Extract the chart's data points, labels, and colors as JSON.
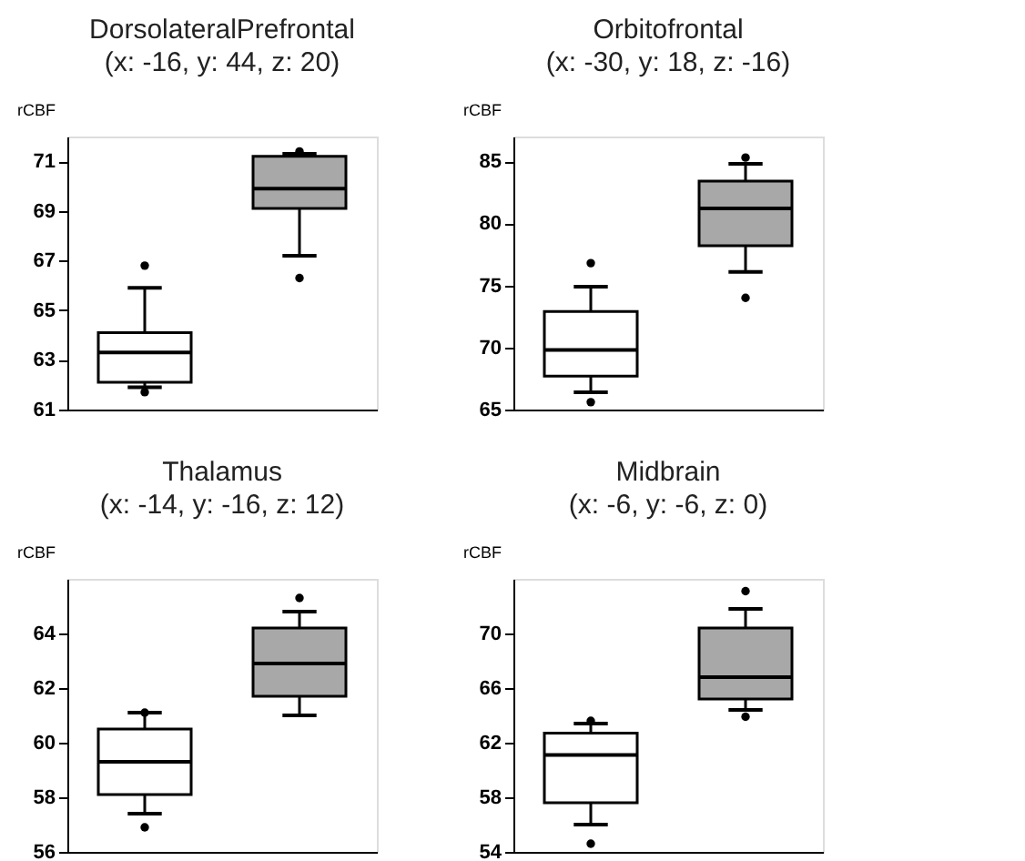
{
  "chart_data": [
    {
      "type": "box",
      "title": "DorsolateralPrefrontal",
      "subtitle": "(x: -16, y: 44, z: 20)",
      "ylabel": "rCBF",
      "categories": [
        null,
        null
      ],
      "colors": [
        "#ffffff",
        "#a8a8a8"
      ],
      "ylim": [
        61,
        72
      ],
      "yticks": [
        61,
        63,
        65,
        67,
        69,
        71
      ],
      "grid": false,
      "legend": false,
      "tick_labels": "y",
      "boxes": [
        {
          "low": 61.9,
          "q1": 62.1,
          "median": 63.3,
          "q3": 64.1,
          "high": 65.9,
          "outliers": [
            66.8,
            61.7
          ]
        },
        {
          "low": 67.2,
          "q1": 69.1,
          "median": 69.9,
          "q3": 71.2,
          "high": 71.3,
          "outliers": [
            71.4,
            66.3
          ]
        }
      ]
    },
    {
      "type": "box",
      "title": "Orbitofrontal",
      "subtitle": "(x: -30, y: 18, z: -16)",
      "ylabel": "rCBF",
      "categories": [
        null,
        null
      ],
      "colors": [
        "#ffffff",
        "#a8a8a8"
      ],
      "ylim": [
        65,
        87
      ],
      "yticks": [
        65,
        70,
        75,
        80,
        85
      ],
      "grid": false,
      "legend": false,
      "tick_labels": "y",
      "boxes": [
        {
          "low": 66.4,
          "q1": 67.7,
          "median": 69.8,
          "q3": 72.9,
          "high": 74.9,
          "outliers": [
            76.8,
            65.6
          ]
        },
        {
          "low": 76.1,
          "q1": 78.2,
          "median": 81.2,
          "q3": 83.4,
          "high": 84.8,
          "outliers": [
            85.3,
            74.0
          ]
        }
      ]
    },
    {
      "type": "box",
      "title": "Thalamus",
      "subtitle": "(x: -14, y: -16, z: 12)",
      "ylabel": "rCBF",
      "categories": [
        null,
        null
      ],
      "colors": [
        "#ffffff",
        "#a8a8a8"
      ],
      "ylim": [
        56,
        66
      ],
      "yticks": [
        56,
        58,
        60,
        62,
        64
      ],
      "grid": false,
      "legend": false,
      "tick_labels": "y",
      "boxes": [
        {
          "low": 57.4,
          "q1": 58.1,
          "median": 59.3,
          "q3": 60.5,
          "high": 61.1,
          "outliers": [
            61.1,
            56.9
          ]
        },
        {
          "low": 61.0,
          "q1": 61.7,
          "median": 62.9,
          "q3": 64.2,
          "high": 64.8,
          "outliers": [
            65.3
          ]
        }
      ]
    },
    {
      "type": "box",
      "title": "Midbrain",
      "subtitle": "(x: -6, y: -6, z: 0)",
      "ylabel": "rCBF",
      "categories": [
        null,
        null
      ],
      "colors": [
        "#ffffff",
        "#a8a8a8"
      ],
      "ylim": [
        54,
        74
      ],
      "yticks": [
        54,
        58,
        62,
        66,
        70
      ],
      "grid": false,
      "legend": false,
      "tick_labels": "y",
      "boxes": [
        {
          "low": 56.0,
          "q1": 57.6,
          "median": 61.1,
          "q3": 62.7,
          "high": 63.4,
          "outliers": [
            63.6,
            54.6
          ]
        },
        {
          "low": 64.4,
          "q1": 65.2,
          "median": 66.8,
          "q3": 70.4,
          "high": 71.8,
          "outliers": [
            73.1,
            63.9
          ]
        }
      ]
    }
  ]
}
